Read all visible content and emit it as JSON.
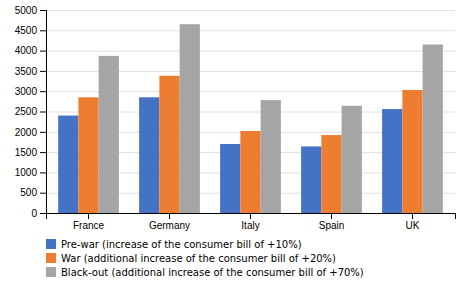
{
  "chart_data": {
    "type": "bar",
    "categories": [
      "France",
      "Germany",
      "Italy",
      "Spain",
      "UK"
    ],
    "series": [
      {
        "name": "Pre-war (increase of the consumer bill of +10%)",
        "color": "#4472C4",
        "values": [
          2400,
          2850,
          1700,
          1640,
          2560
        ]
      },
      {
        "name": "War (additional increase of the consumer bill of +20%)",
        "color": "#ED7D31",
        "values": [
          2850,
          3380,
          2020,
          1920,
          3030
        ]
      },
      {
        "name": "Black-out (additional increase of the consumer bill of +70%)",
        "color": "#A5A5A5",
        "values": [
          3870,
          4650,
          2780,
          2640,
          4150
        ]
      }
    ],
    "ylim": [
      0,
      5000
    ],
    "yticks": [
      0,
      500,
      1000,
      1500,
      2000,
      2500,
      3000,
      3500,
      4000,
      4500,
      5000
    ],
    "grid": true,
    "legend": "bottom"
  }
}
